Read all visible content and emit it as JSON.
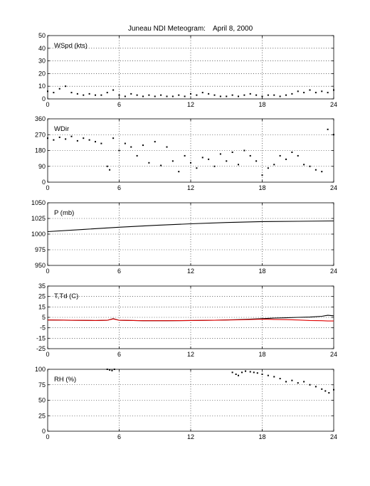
{
  "figure": {
    "title": "Juneau NDI Meteogram:",
    "date": "April  8, 2000"
  },
  "colors": {
    "series_primary": "#000000",
    "series_dewpoint": "#e00000",
    "grid": "#000000",
    "background": "#ffffff"
  },
  "chart_data": [
    {
      "type": "scatter",
      "label": "WSpd (kts)",
      "xlim": [
        0,
        24
      ],
      "ylim": [
        0,
        50
      ],
      "xticks": [
        "0",
        "6",
        "12",
        "18",
        "24"
      ],
      "yticks": [
        "0",
        "10",
        "20",
        "30",
        "40",
        "50"
      ],
      "grid": true,
      "series": [
        {
          "style": "dots",
          "x": [
            0,
            0.5,
            1,
            1.5,
            2,
            2.5,
            3,
            3.5,
            4,
            4.5,
            5,
            5.5,
            6,
            6.5,
            7,
            7.5,
            8,
            8.5,
            9,
            9.5,
            10,
            10.5,
            11,
            11.5,
            12,
            12.5,
            13,
            13.5,
            14,
            14.5,
            15,
            15.5,
            16,
            16.5,
            17,
            17.5,
            18,
            18.5,
            19,
            19.5,
            20,
            20.5,
            21,
            21.5,
            22,
            22.5,
            23,
            23.5,
            24
          ],
          "y": [
            6,
            5,
            8,
            10,
            5,
            4,
            3,
            4,
            3,
            3,
            5,
            7,
            3,
            2,
            4,
            3,
            2,
            3,
            2,
            3,
            2,
            2,
            3,
            2,
            4,
            3,
            5,
            4,
            3,
            2,
            2,
            3,
            2,
            3,
            4,
            3,
            2,
            3,
            3,
            2,
            3,
            4,
            6,
            5,
            7,
            5,
            6,
            5,
            7
          ]
        }
      ]
    },
    {
      "type": "scatter",
      "label": "WDir",
      "xlim": [
        0,
        24
      ],
      "ylim": [
        0,
        360
      ],
      "xticks": [
        "0",
        "6",
        "12",
        "18",
        "24"
      ],
      "yticks": [
        "0",
        "90",
        "180",
        "270",
        "360"
      ],
      "grid": true,
      "series": [
        {
          "style": "dots",
          "x": [
            0,
            0.5,
            1,
            1.5,
            2,
            2.5,
            3,
            3.5,
            4,
            4.5,
            5,
            5.2,
            5.5,
            6,
            6.5,
            7,
            7.5,
            8,
            8.5,
            9,
            9.5,
            10,
            10.5,
            11,
            11.5,
            12,
            12.5,
            13,
            13.5,
            14,
            14.5,
            15,
            15.5,
            16,
            16.5,
            17,
            17.5,
            18,
            18.5,
            19,
            19.5,
            20,
            20.5,
            21,
            21.5,
            22,
            22.5,
            23,
            23.5,
            24
          ],
          "y": [
            250,
            240,
            255,
            245,
            260,
            235,
            250,
            240,
            230,
            220,
            90,
            70,
            250,
            180,
            220,
            200,
            150,
            210,
            110,
            230,
            95,
            200,
            120,
            60,
            150,
            110,
            80,
            140,
            130,
            90,
            160,
            120,
            170,
            100,
            180,
            150,
            120,
            40,
            80,
            100,
            150,
            130,
            170,
            150,
            100,
            90,
            70,
            60,
            300,
            270
          ]
        }
      ]
    },
    {
      "type": "line",
      "label": "P (mb)",
      "xlim": [
        0,
        24
      ],
      "ylim": [
        950,
        1050
      ],
      "xticks": [
        "0",
        "6",
        "12",
        "18",
        "24"
      ],
      "yticks": [
        "950",
        "975",
        "1000",
        "1025",
        "1050"
      ],
      "grid": true,
      "series": [
        {
          "style": "line",
          "x": [
            0,
            3,
            6,
            9,
            12,
            15,
            18,
            21,
            24
          ],
          "y": [
            1004,
            1007.5,
            1011,
            1014,
            1016.5,
            1018.5,
            1020,
            1020.5,
            1021
          ]
        }
      ]
    },
    {
      "type": "line",
      "label": "T,Td (C)",
      "xlim": [
        0,
        24
      ],
      "ylim": [
        -25,
        35
      ],
      "xticks": [
        "0",
        "6",
        "12",
        "18",
        "24"
      ],
      "yticks": [
        "-25",
        "-15",
        "-5",
        "5",
        "15",
        "25",
        "35"
      ],
      "grid": true,
      "series": [
        {
          "style": "line",
          "x": [
            0,
            2,
            4,
            5,
            5.5,
            6,
            8,
            10,
            12,
            14,
            16,
            18,
            19,
            20,
            21,
            22,
            23,
            23.5,
            24
          ],
          "y": [
            2.5,
            2.2,
            2,
            2.2,
            3.8,
            2.2,
            1.8,
            1.8,
            2,
            2.3,
            2.8,
            3.8,
            4.3,
            4.6,
            5,
            5.3,
            6,
            7,
            6.5
          ]
        },
        {
          "style": "line",
          "color_key": "series_dewpoint",
          "x": [
            0,
            2,
            4,
            5,
            5.5,
            6,
            8,
            10,
            12,
            14,
            16,
            18,
            19,
            20,
            21,
            22,
            23,
            23.5,
            24
          ],
          "y": [
            2.5,
            2.2,
            2,
            2.2,
            3.5,
            2.2,
            1.8,
            1.8,
            2,
            2.2,
            2.6,
            3.2,
            3,
            2.8,
            2.5,
            2,
            1.8,
            1.5,
            1.5
          ]
        }
      ]
    },
    {
      "type": "scatter",
      "label": "RH (%)",
      "xlim": [
        0,
        24
      ],
      "ylim": [
        0,
        100
      ],
      "xticks": [
        "0",
        "6",
        "12",
        "18",
        "24"
      ],
      "yticks": [
        "0",
        "25",
        "50",
        "75",
        "100"
      ],
      "grid": true,
      "series": [
        {
          "style": "dots",
          "x": [
            5.0,
            5.2,
            5.4,
            5.6,
            15.5,
            15.8,
            16,
            16.3,
            16.6,
            17,
            17.3,
            17.6,
            18,
            18.5,
            19,
            19.5,
            20,
            20.5,
            21,
            21.5,
            22,
            22.5,
            23,
            23.3,
            23.6,
            24
          ],
          "y": [
            100,
            99,
            98,
            100,
            95,
            92,
            90,
            95,
            97,
            96,
            95,
            94,
            92,
            90,
            88,
            85,
            80,
            82,
            78,
            80,
            75,
            72,
            68,
            65,
            62,
            67
          ]
        }
      ]
    }
  ]
}
